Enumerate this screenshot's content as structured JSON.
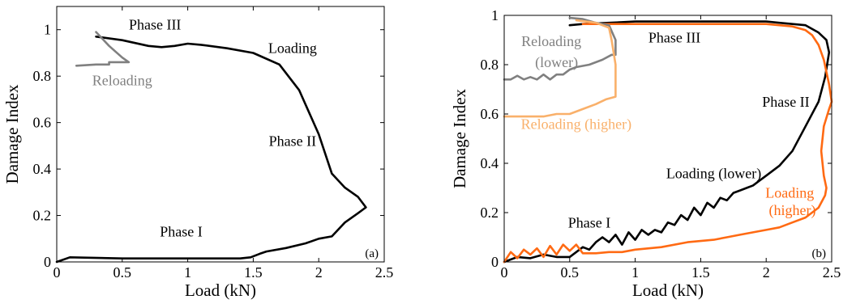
{
  "chart_data": [
    {
      "type": "line",
      "xlabel": "Load (kN)",
      "ylabel": "Damage Index",
      "xlim": [
        0,
        2.5
      ],
      "ylim": [
        0,
        1.1
      ],
      "xticks": [
        0,
        0.5,
        1,
        1.5,
        2,
        2.5
      ],
      "yticks": [
        0,
        0.2,
        0.4,
        0.6,
        0.8,
        1
      ],
      "xtick_labels": [
        "0",
        "0.5",
        "1",
        "1.5",
        "2",
        "2.5"
      ],
      "ytick_labels": [
        "0",
        "0.2",
        "0.4",
        "0.6",
        "0.8",
        "1"
      ],
      "panel_label": "(a)",
      "series": [
        {
          "name": "Loading",
          "color": "#000000",
          "x": [
            0.0,
            0.1,
            0.5,
            1.0,
            1.4,
            1.48,
            1.55,
            1.6,
            1.75,
            1.9,
            2.0,
            2.1,
            2.2,
            2.3,
            2.36,
            2.3,
            2.2,
            2.1,
            2.0,
            1.85,
            1.7,
            1.5,
            1.3,
            1.1,
            1.0,
            0.9,
            0.8,
            0.7,
            0.5,
            0.3
          ],
          "y": [
            0.0,
            0.02,
            0.015,
            0.015,
            0.015,
            0.02,
            0.035,
            0.045,
            0.06,
            0.08,
            0.1,
            0.11,
            0.17,
            0.21,
            0.235,
            0.28,
            0.32,
            0.38,
            0.55,
            0.74,
            0.85,
            0.9,
            0.92,
            0.935,
            0.94,
            0.93,
            0.925,
            0.93,
            0.955,
            0.97
          ]
        },
        {
          "name": "Reloading",
          "color": "#808080",
          "x": [
            0.3,
            0.4,
            0.5,
            0.55,
            0.4,
            0.4,
            0.3,
            0.15
          ],
          "y": [
            0.99,
            0.93,
            0.88,
            0.86,
            0.86,
            0.85,
            0.85,
            0.845
          ]
        }
      ],
      "annotations": [
        {
          "text": "Phase III",
          "x": 0.75,
          "y": 1.0
        },
        {
          "text": "Loading",
          "x": 1.8,
          "y": 0.9
        },
        {
          "text": "Reloading",
          "x": 0.5,
          "y": 0.76
        },
        {
          "text": "Phase II",
          "x": 1.8,
          "y": 0.5
        },
        {
          "text": "Phase I",
          "x": 0.95,
          "y": 0.11
        }
      ]
    },
    {
      "type": "line",
      "xlabel": "Load (kN)",
      "ylabel": "Damage Index",
      "xlim": [
        0,
        2.5
      ],
      "ylim": [
        0,
        1.0
      ],
      "xticks": [
        0,
        0.5,
        1,
        1.5,
        2,
        2.5
      ],
      "yticks": [
        0,
        0.2,
        0.4,
        0.6,
        0.8,
        1
      ],
      "xtick_labels": [
        "0",
        "0.5",
        "1",
        "1.5",
        "2",
        "2.5"
      ],
      "ytick_labels": [
        "0",
        "0.2",
        "0.4",
        "0.6",
        "0.8",
        "1"
      ],
      "panel_label": "(b)",
      "series": [
        {
          "name": "Loading (lower)",
          "color": "#000000",
          "x": [
            0.0,
            0.1,
            0.2,
            0.3,
            0.4,
            0.5,
            0.55,
            0.6,
            0.65,
            0.7,
            0.75,
            0.8,
            0.85,
            0.9,
            0.95,
            1.0,
            1.05,
            1.1,
            1.15,
            1.2,
            1.25,
            1.3,
            1.35,
            1.4,
            1.45,
            1.5,
            1.55,
            1.6,
            1.65,
            1.7,
            1.75,
            1.8,
            1.85,
            1.9,
            1.95,
            2.0,
            2.05,
            2.1,
            2.2,
            2.3,
            2.4,
            2.45,
            2.48,
            2.46,
            2.4,
            2.3,
            2.2,
            2.1,
            2.0,
            1.8,
            1.5,
            1.2,
            1.0,
            0.8,
            0.6,
            0.5
          ],
          "y": [
            0.0,
            0.02,
            0.015,
            0.03,
            0.02,
            0.02,
            0.04,
            0.06,
            0.05,
            0.08,
            0.1,
            0.08,
            0.11,
            0.07,
            0.12,
            0.09,
            0.13,
            0.11,
            0.13,
            0.12,
            0.16,
            0.15,
            0.19,
            0.17,
            0.22,
            0.19,
            0.24,
            0.22,
            0.26,
            0.25,
            0.28,
            0.29,
            0.3,
            0.31,
            0.33,
            0.35,
            0.37,
            0.39,
            0.45,
            0.55,
            0.65,
            0.75,
            0.85,
            0.9,
            0.93,
            0.96,
            0.965,
            0.97,
            0.975,
            0.975,
            0.975,
            0.975,
            0.975,
            0.97,
            0.965,
            0.96
          ]
        },
        {
          "name": "Loading (higher)",
          "color": "#ff6a13",
          "x": [
            0.0,
            0.05,
            0.1,
            0.15,
            0.2,
            0.25,
            0.3,
            0.35,
            0.4,
            0.45,
            0.5,
            0.55,
            0.6,
            0.7,
            0.8,
            0.9,
            1.0,
            1.2,
            1.4,
            1.6,
            1.7,
            1.8,
            1.9,
            2.0,
            2.1,
            2.2,
            2.3,
            2.4,
            2.45,
            2.46,
            2.44,
            2.42,
            2.44,
            2.48,
            2.5,
            2.48,
            2.44,
            2.4,
            2.35,
            2.3,
            2.2,
            2.0,
            1.8,
            1.5,
            1.2,
            1.0,
            0.8,
            0.6
          ],
          "y": [
            0.0,
            0.04,
            0.015,
            0.05,
            0.03,
            0.055,
            0.02,
            0.065,
            0.03,
            0.07,
            0.045,
            0.07,
            0.035,
            0.035,
            0.04,
            0.04,
            0.05,
            0.06,
            0.08,
            0.09,
            0.1,
            0.11,
            0.12,
            0.13,
            0.14,
            0.16,
            0.18,
            0.22,
            0.27,
            0.3,
            0.35,
            0.45,
            0.55,
            0.62,
            0.65,
            0.72,
            0.82,
            0.88,
            0.92,
            0.94,
            0.955,
            0.965,
            0.965,
            0.965,
            0.965,
            0.965,
            0.965,
            0.965
          ]
        },
        {
          "name": "Reloading (lower)",
          "color": "#808080",
          "x": [
            0.5,
            0.6,
            0.7,
            0.8,
            0.85,
            0.85,
            0.82,
            0.75,
            0.65,
            0.55,
            0.5,
            0.45,
            0.4,
            0.35,
            0.3,
            0.25,
            0.2,
            0.15,
            0.1,
            0.05,
            0.0
          ],
          "y": [
            0.99,
            0.985,
            0.97,
            0.96,
            0.9,
            0.84,
            0.84,
            0.82,
            0.8,
            0.79,
            0.78,
            0.76,
            0.76,
            0.74,
            0.76,
            0.74,
            0.75,
            0.74,
            0.755,
            0.74,
            0.74
          ]
        },
        {
          "name": "Reloading (higher)",
          "color": "#f9b06a",
          "x": [
            0.55,
            0.7,
            0.8,
            0.82,
            0.85,
            0.85,
            0.78,
            0.7,
            0.6,
            0.5,
            0.4,
            0.3,
            0.2,
            0.1,
            0.0
          ],
          "y": [
            0.98,
            0.97,
            0.95,
            0.9,
            0.8,
            0.67,
            0.66,
            0.64,
            0.62,
            0.6,
            0.6,
            0.59,
            0.59,
            0.59,
            0.59
          ]
        }
      ],
      "annotations": [
        {
          "text": "Reloading",
          "x": 0.36,
          "y": 0.875
        },
        {
          "text": "(lower)",
          "x": 0.4,
          "y": 0.79
        },
        {
          "text": "Phase III",
          "x": 1.3,
          "y": 0.89
        },
        {
          "text": "Phase II",
          "x": 2.15,
          "y": 0.63
        },
        {
          "text": "Reloading (higher)",
          "x": 0.55,
          "y": 0.54
        },
        {
          "text": "Loading (lower)",
          "x": 1.6,
          "y": 0.34
        },
        {
          "text": "Loading",
          "x": 2.18,
          "y": 0.26
        },
        {
          "text": "(higher)",
          "x": 2.2,
          "y": 0.19
        },
        {
          "text": "Phase I",
          "x": 0.65,
          "y": 0.14
        }
      ]
    }
  ]
}
